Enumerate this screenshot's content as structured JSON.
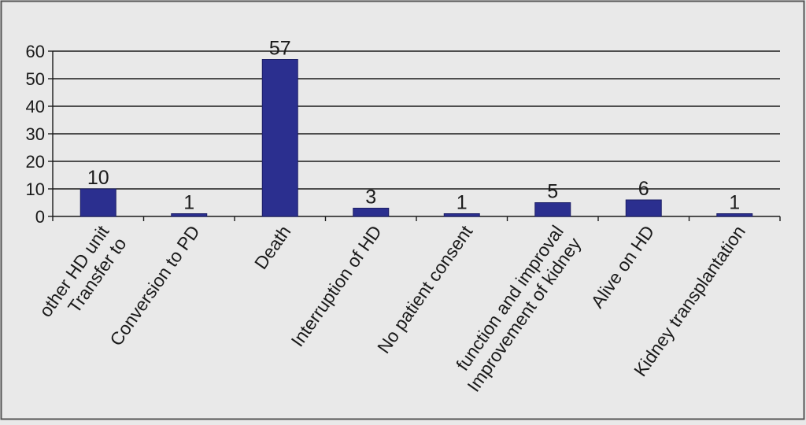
{
  "chart_data": {
    "type": "bar",
    "title": "",
    "xlabel": "",
    "ylabel": "",
    "categories": [
      [
        "Transfer to",
        "other HD unit"
      ],
      [
        "Conversion to PD"
      ],
      [
        "Death"
      ],
      [
        "Interruption of HD"
      ],
      [
        "No patient consent"
      ],
      [
        "Improvement of kidney",
        "function and improval"
      ],
      [
        "Alive on HD"
      ],
      [
        "Kidney transplantation"
      ]
    ],
    "values": [
      10,
      1,
      57,
      3,
      1,
      5,
      6,
      1
    ],
    "data_labels": [
      "10",
      "1",
      "57",
      "3",
      "1",
      "5",
      "6",
      "1"
    ],
    "ylim": [
      0,
      60
    ],
    "yticks": [
      "0",
      "10",
      "20",
      "30",
      "40",
      "50",
      "60"
    ],
    "grid": true,
    "legend": "none",
    "colors": {
      "bar_fill": "#2b2f8f",
      "bar_edge": "#1c1f66",
      "grid": "#1a1a1a",
      "background": "#e9e9e9",
      "frame": "#555555"
    }
  }
}
